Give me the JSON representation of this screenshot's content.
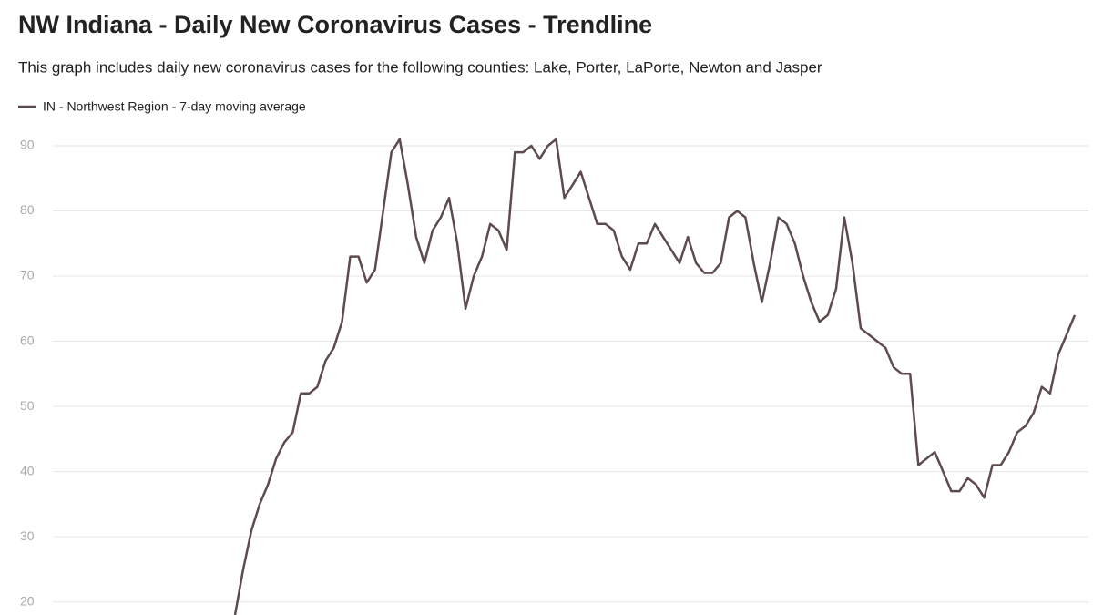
{
  "chart_data": {
    "type": "line",
    "title": "NW Indiana - Daily New Coronavirus Cases - Trendline",
    "subtitle": "This graph includes daily new coronavirus cases for the following counties: Lake, Porter, LaPorte, Newton and Jasper",
    "series": [
      {
        "name": "IN - Northwest Region - 7-day moving average",
        "color": "#5e4b4d",
        "values": [
          18,
          25,
          31,
          35,
          38,
          42,
          44.5,
          46,
          52,
          52,
          53,
          57,
          59,
          63,
          73,
          73,
          69,
          71,
          80,
          89,
          91,
          84,
          76,
          72,
          77,
          79,
          82,
          75,
          65,
          70,
          73,
          78,
          77,
          74,
          89,
          89,
          90,
          88,
          90,
          91,
          82,
          84,
          86,
          82,
          78,
          78,
          77,
          73,
          71,
          75,
          75,
          78,
          76,
          74,
          72,
          76,
          72,
          70.5,
          70.5,
          72,
          79,
          80,
          79,
          72,
          66,
          72,
          79,
          78,
          75,
          70,
          66,
          63,
          64,
          68,
          79,
          72,
          62,
          61,
          60,
          59,
          56,
          55,
          55,
          41,
          42,
          43,
          40,
          37,
          37,
          39,
          38,
          36,
          41,
          41,
          43,
          46,
          47,
          49,
          53,
          52,
          58,
          61,
          64
        ]
      }
    ],
    "ylim": [
      18,
      93
    ],
    "yticks": [
      20,
      30,
      40,
      50,
      60,
      70,
      80,
      90
    ],
    "grid": true
  }
}
